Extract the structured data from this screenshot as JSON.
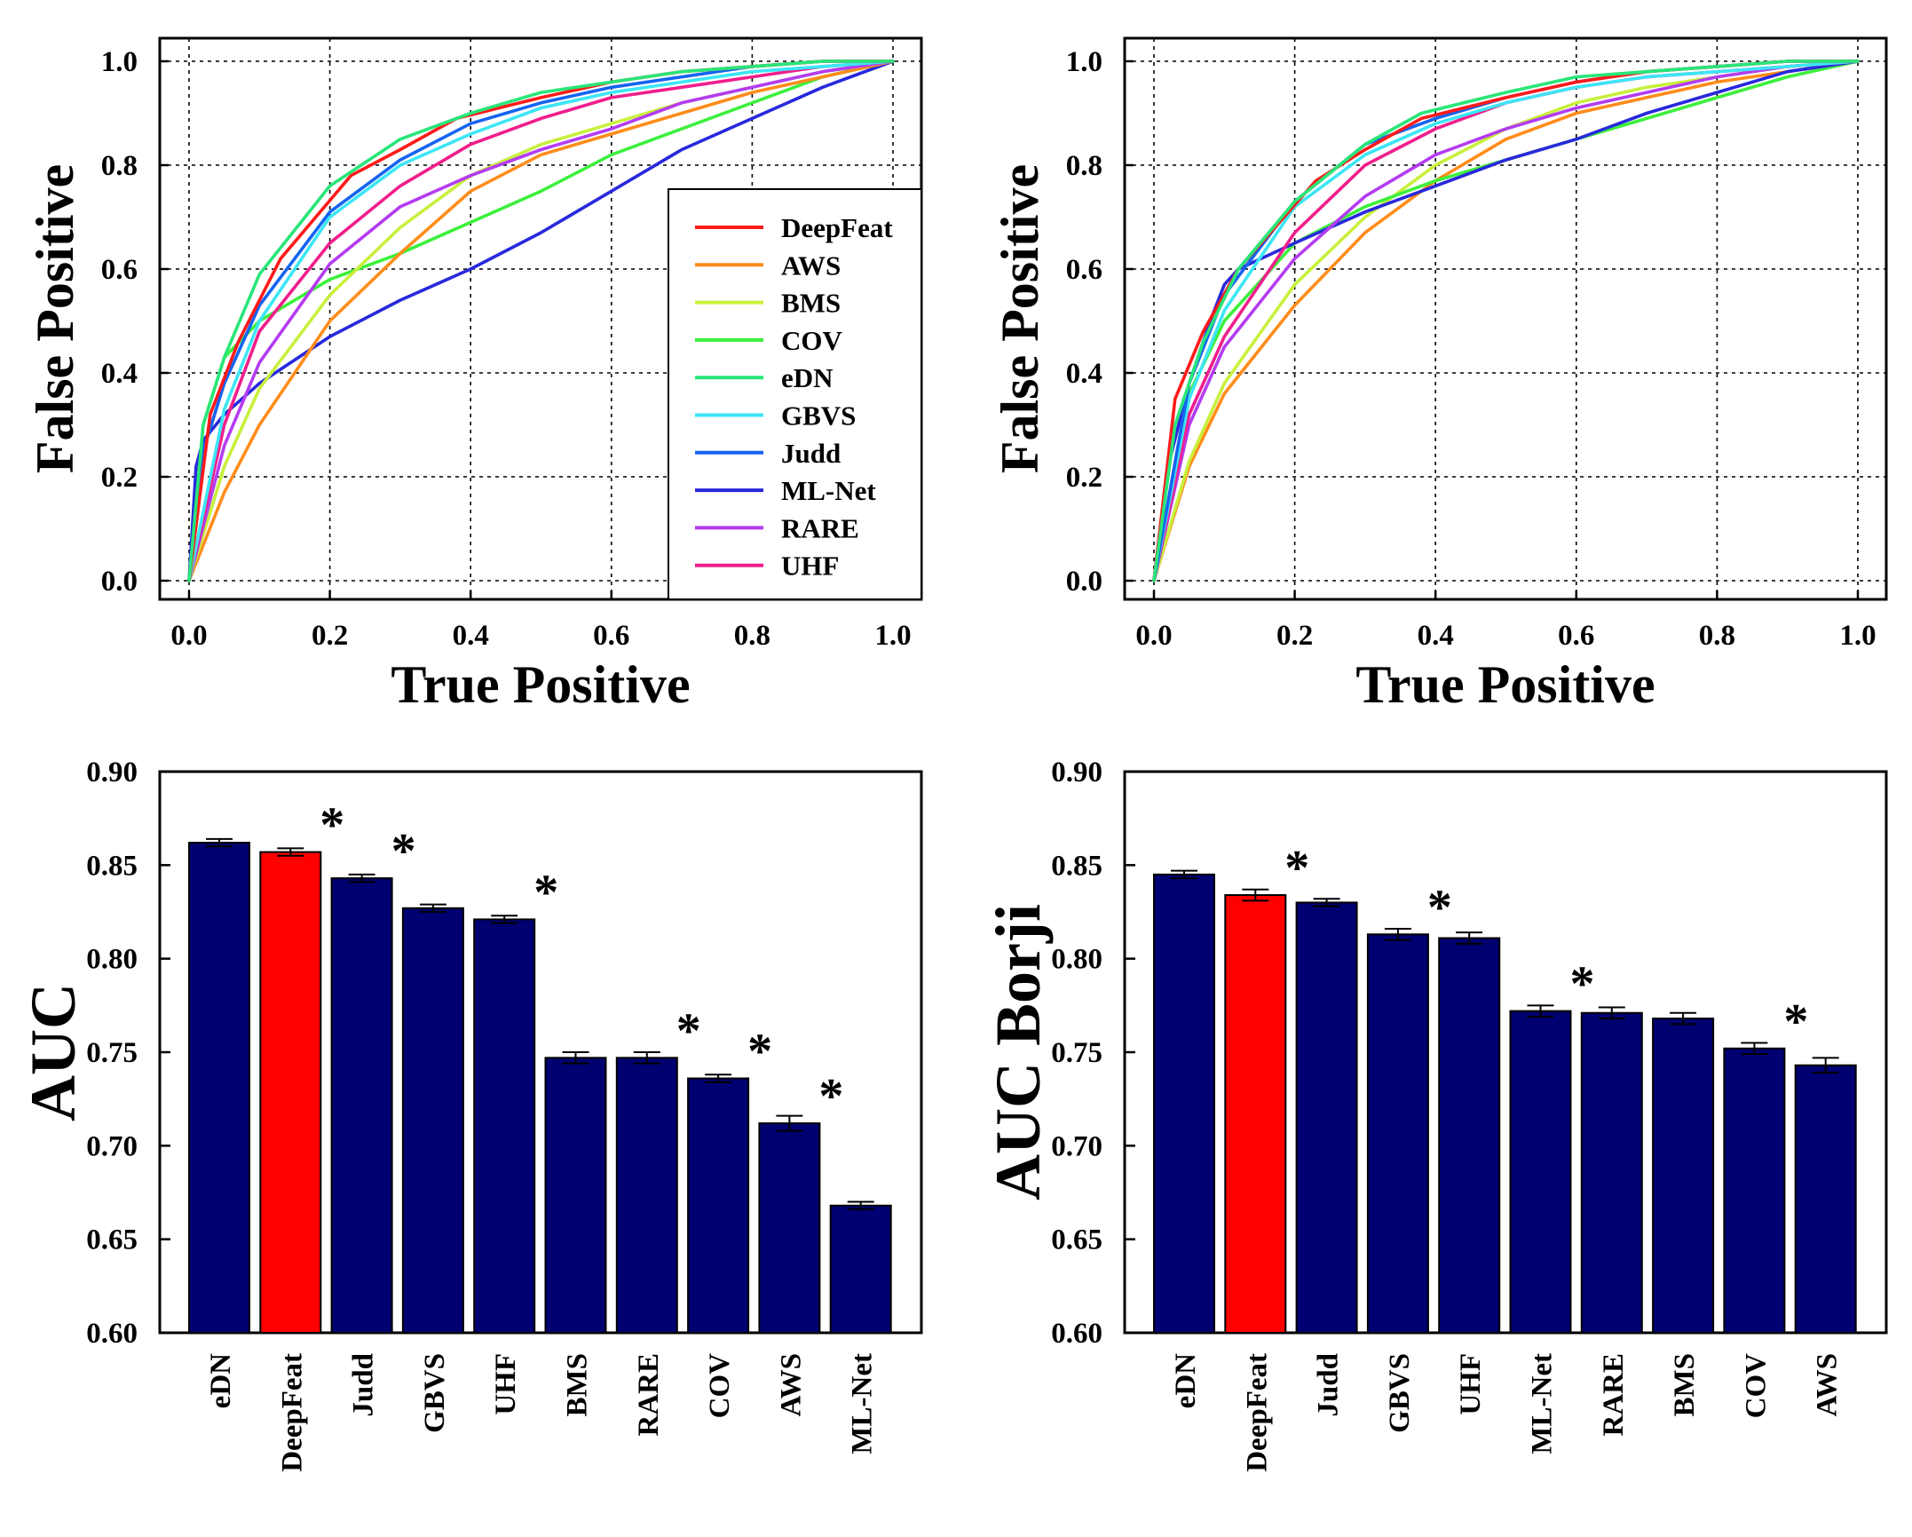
{
  "legend_colors": {
    "DeepFeat": "#ff1a1a",
    "AWS": "#ff8c1a",
    "BMS": "#c8f03c",
    "COV": "#3cf03c",
    "eDN": "#28e678",
    "GBVS": "#3ce6f5",
    "Judd": "#1464f0",
    "ML-Net": "#2828dc",
    "RARE": "#b43cf0",
    "UHF": "#f01e8c"
  },
  "bar_colors": {
    "default": "#000070",
    "highlight": "#ff0000",
    "errorbar": "#000000"
  },
  "chart_data": [
    {
      "type": "line",
      "panel": "top-left",
      "title": "",
      "xlabel": "True Positive",
      "ylabel": "False Positive",
      "xlim": [
        0,
        1
      ],
      "ylim": [
        0,
        1
      ],
      "xticks": [
        "0.0",
        "0.2",
        "0.4",
        "0.6",
        "0.8",
        "1.0"
      ],
      "yticks": [
        "0.0",
        "0.2",
        "0.4",
        "0.6",
        "0.8",
        "1.0"
      ],
      "grid": true,
      "legend_position": "right",
      "series": [
        {
          "name": "COV",
          "x": [
            0,
            0.02,
            0.05,
            0.1,
            0.2,
            0.3,
            0.4,
            0.5,
            0.6,
            0.7,
            0.8,
            0.9,
            1.0
          ],
          "y": [
            0,
            0.3,
            0.43,
            0.5,
            0.58,
            0.63,
            0.69,
            0.75,
            0.82,
            0.87,
            0.92,
            0.97,
            1.0
          ]
        },
        {
          "name": "ML-Net",
          "x": [
            0,
            0.01,
            0.02,
            0.05,
            0.1,
            0.2,
            0.3,
            0.4,
            0.5,
            0.6,
            0.7,
            0.8,
            0.9,
            1.0
          ],
          "y": [
            0,
            0.22,
            0.27,
            0.32,
            0.38,
            0.47,
            0.54,
            0.6,
            0.67,
            0.75,
            0.83,
            0.89,
            0.95,
            1.0
          ]
        },
        {
          "name": "AWS",
          "x": [
            0,
            0.05,
            0.1,
            0.2,
            0.3,
            0.4,
            0.5,
            0.6,
            0.7,
            0.8,
            0.9,
            1.0
          ],
          "y": [
            0,
            0.17,
            0.3,
            0.5,
            0.63,
            0.75,
            0.82,
            0.86,
            0.9,
            0.94,
            0.97,
            1.0
          ]
        },
        {
          "name": "BMS",
          "x": [
            0,
            0.05,
            0.1,
            0.2,
            0.3,
            0.4,
            0.5,
            0.6,
            0.7,
            0.8,
            0.9,
            1.0
          ],
          "y": [
            0,
            0.22,
            0.37,
            0.55,
            0.68,
            0.78,
            0.84,
            0.88,
            0.92,
            0.95,
            0.98,
            1.0
          ]
        },
        {
          "name": "RARE",
          "x": [
            0,
            0.05,
            0.1,
            0.2,
            0.3,
            0.4,
            0.5,
            0.6,
            0.7,
            0.8,
            0.9,
            1.0
          ],
          "y": [
            0,
            0.26,
            0.42,
            0.61,
            0.72,
            0.78,
            0.83,
            0.87,
            0.92,
            0.95,
            0.98,
            1.0
          ]
        },
        {
          "name": "UHF",
          "x": [
            0,
            0.05,
            0.1,
            0.2,
            0.3,
            0.4,
            0.5,
            0.6,
            0.7,
            0.8,
            0.9,
            1.0
          ],
          "y": [
            0,
            0.3,
            0.48,
            0.65,
            0.76,
            0.84,
            0.89,
            0.93,
            0.95,
            0.97,
            0.99,
            1.0
          ]
        },
        {
          "name": "GBVS",
          "x": [
            0,
            0.05,
            0.1,
            0.2,
            0.3,
            0.4,
            0.5,
            0.6,
            0.7,
            0.8,
            0.9,
            1.0
          ],
          "y": [
            0,
            0.33,
            0.5,
            0.7,
            0.8,
            0.86,
            0.91,
            0.94,
            0.96,
            0.98,
            0.99,
            1.0
          ]
        },
        {
          "name": "Judd",
          "x": [
            0,
            0.02,
            0.05,
            0.1,
            0.2,
            0.3,
            0.4,
            0.5,
            0.6,
            0.7,
            0.8,
            0.9,
            1.0
          ],
          "y": [
            0,
            0.25,
            0.38,
            0.53,
            0.71,
            0.81,
            0.88,
            0.92,
            0.95,
            0.97,
            0.99,
            1.0,
            1.0
          ]
        },
        {
          "name": "DeepFeat",
          "x": [
            0,
            0.03,
            0.07,
            0.13,
            0.23,
            0.3,
            0.38,
            0.5,
            0.6,
            0.7,
            0.8,
            0.9,
            1.0
          ],
          "y": [
            0,
            0.32,
            0.46,
            0.62,
            0.78,
            0.83,
            0.89,
            0.93,
            0.96,
            0.98,
            0.99,
            1.0,
            1.0
          ]
        },
        {
          "name": "eDN",
          "x": [
            0,
            0.02,
            0.05,
            0.1,
            0.2,
            0.3,
            0.4,
            0.5,
            0.6,
            0.7,
            0.8,
            0.9,
            1.0
          ],
          "y": [
            0,
            0.3,
            0.43,
            0.59,
            0.76,
            0.85,
            0.9,
            0.94,
            0.96,
            0.98,
            0.99,
            1.0,
            1.0
          ]
        }
      ]
    },
    {
      "type": "line",
      "panel": "top-right",
      "title": "",
      "xlabel": "True Positive",
      "ylabel": "False Positive",
      "xlim": [
        0,
        1
      ],
      "ylim": [
        0,
        1
      ],
      "xticks": [
        "0.0",
        "0.2",
        "0.4",
        "0.6",
        "0.8",
        "1.0"
      ],
      "yticks": [
        "0.0",
        "0.2",
        "0.4",
        "0.6",
        "0.8",
        "1.0"
      ],
      "grid": true,
      "series": [
        {
          "name": "AWS",
          "x": [
            0,
            0.05,
            0.1,
            0.2,
            0.3,
            0.4,
            0.5,
            0.6,
            0.7,
            0.8,
            0.9,
            1.0
          ],
          "y": [
            0,
            0.22,
            0.36,
            0.53,
            0.67,
            0.77,
            0.85,
            0.9,
            0.93,
            0.96,
            0.98,
            1.0
          ]
        },
        {
          "name": "BMS",
          "x": [
            0,
            0.05,
            0.1,
            0.2,
            0.3,
            0.4,
            0.5,
            0.6,
            0.7,
            0.8,
            0.9,
            1.0
          ],
          "y": [
            0,
            0.23,
            0.38,
            0.57,
            0.7,
            0.8,
            0.87,
            0.92,
            0.95,
            0.97,
            0.99,
            1.0
          ]
        },
        {
          "name": "COV",
          "x": [
            0,
            0.05,
            0.1,
            0.2,
            0.3,
            0.4,
            0.5,
            0.6,
            0.7,
            0.8,
            0.9,
            1.0
          ],
          "y": [
            0,
            0.36,
            0.5,
            0.65,
            0.72,
            0.77,
            0.81,
            0.85,
            0.89,
            0.93,
            0.97,
            1.0
          ]
        },
        {
          "name": "ML-Net",
          "x": [
            0,
            0.02,
            0.05,
            0.08,
            0.1,
            0.12,
            0.2,
            0.3,
            0.4,
            0.5,
            0.6,
            0.7,
            0.8,
            0.9,
            1.0
          ],
          "y": [
            0,
            0.22,
            0.38,
            0.5,
            0.57,
            0.6,
            0.65,
            0.71,
            0.76,
            0.81,
            0.85,
            0.9,
            0.94,
            0.98,
            1.0
          ]
        },
        {
          "name": "RARE",
          "x": [
            0,
            0.05,
            0.1,
            0.2,
            0.3,
            0.4,
            0.5,
            0.6,
            0.7,
            0.8,
            0.9,
            1.0
          ],
          "y": [
            0,
            0.3,
            0.45,
            0.62,
            0.74,
            0.82,
            0.87,
            0.91,
            0.94,
            0.97,
            0.99,
            1.0
          ]
        },
        {
          "name": "UHF",
          "x": [
            0,
            0.05,
            0.1,
            0.2,
            0.3,
            0.4,
            0.5,
            0.6,
            0.7,
            0.8,
            0.9,
            1.0
          ],
          "y": [
            0,
            0.32,
            0.47,
            0.67,
            0.8,
            0.87,
            0.92,
            0.95,
            0.97,
            0.98,
            0.99,
            1.0
          ]
        },
        {
          "name": "GBVS",
          "x": [
            0,
            0.05,
            0.1,
            0.2,
            0.3,
            0.4,
            0.5,
            0.6,
            0.7,
            0.8,
            0.9,
            1.0
          ],
          "y": [
            0,
            0.35,
            0.52,
            0.72,
            0.82,
            0.88,
            0.92,
            0.95,
            0.97,
            0.98,
            0.99,
            1.0
          ]
        },
        {
          "name": "Judd",
          "x": [
            0,
            0.05,
            0.1,
            0.2,
            0.3,
            0.4,
            0.5,
            0.6,
            0.7,
            0.8,
            0.9,
            1.0
          ],
          "y": [
            0,
            0.38,
            0.55,
            0.73,
            0.84,
            0.89,
            0.93,
            0.96,
            0.98,
            0.99,
            1.0,
            1.0
          ]
        },
        {
          "name": "DeepFeat",
          "x": [
            0,
            0.03,
            0.07,
            0.12,
            0.23,
            0.3,
            0.38,
            0.5,
            0.6,
            0.7,
            0.8,
            0.9,
            1.0
          ],
          "y": [
            0,
            0.35,
            0.48,
            0.6,
            0.77,
            0.83,
            0.89,
            0.93,
            0.96,
            0.98,
            0.99,
            1.0,
            1.0
          ]
        },
        {
          "name": "eDN",
          "x": [
            0,
            0.03,
            0.07,
            0.12,
            0.2,
            0.3,
            0.38,
            0.5,
            0.6,
            0.7,
            0.8,
            0.9,
            1.0
          ],
          "y": [
            0,
            0.3,
            0.46,
            0.6,
            0.73,
            0.84,
            0.9,
            0.94,
            0.97,
            0.98,
            0.99,
            1.0,
            1.0
          ]
        }
      ]
    },
    {
      "type": "bar",
      "panel": "bottom-left",
      "title": "",
      "xlabel": "",
      "ylabel": "AUC",
      "ylim": [
        0.6,
        0.9
      ],
      "yticks": [
        "0.60",
        "0.65",
        "0.70",
        "0.75",
        "0.80",
        "0.85",
        "0.90"
      ],
      "categories": [
        "eDN",
        "DeepFeat",
        "Judd",
        "GBVS",
        "UHF",
        "BMS",
        "RARE",
        "COV",
        "AWS",
        "ML-Net"
      ],
      "values": [
        0.862,
        0.857,
        0.843,
        0.827,
        0.821,
        0.747,
        0.747,
        0.736,
        0.712,
        0.668
      ],
      "errors": [
        0.002,
        0.002,
        0.002,
        0.002,
        0.002,
        0.003,
        0.003,
        0.002,
        0.004,
        0.002
      ],
      "highlight": "DeepFeat",
      "significance": [
        "",
        "*",
        "*",
        "",
        "*",
        "",
        "*",
        "*",
        "*",
        ""
      ]
    },
    {
      "type": "bar",
      "panel": "bottom-right",
      "title": "",
      "xlabel": "",
      "ylabel": "AUC Borji",
      "ylim": [
        0.6,
        0.9
      ],
      "yticks": [
        "0.60",
        "0.65",
        "0.70",
        "0.75",
        "0.80",
        "0.85",
        "0.90"
      ],
      "categories": [
        "eDN",
        "DeepFeat",
        "Judd",
        "GBVS",
        "UHF",
        "ML-Net",
        "RARE",
        "BMS",
        "COV",
        "AWS"
      ],
      "values": [
        0.845,
        0.834,
        0.83,
        0.813,
        0.811,
        0.772,
        0.771,
        0.768,
        0.752,
        0.743
      ],
      "errors": [
        0.002,
        0.003,
        0.002,
        0.003,
        0.003,
        0.003,
        0.003,
        0.003,
        0.003,
        0.004
      ],
      "highlight": "DeepFeat",
      "significance": [
        "",
        "*",
        "",
        "*",
        "",
        "*",
        "",
        "",
        "*",
        ""
      ]
    }
  ]
}
